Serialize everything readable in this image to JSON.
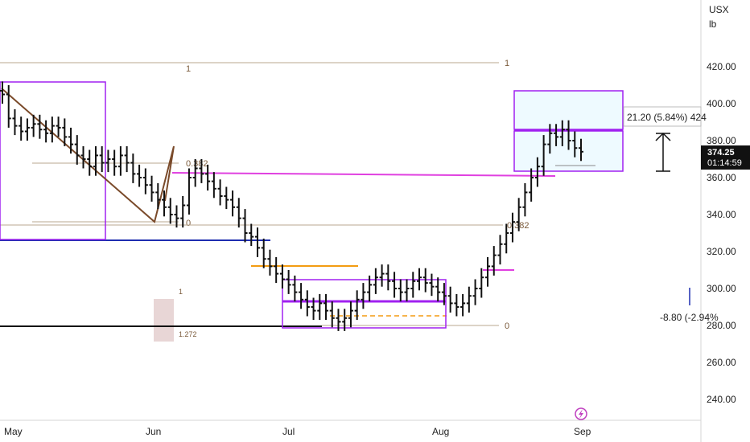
{
  "symbol": "USX",
  "unit": "lb",
  "price_tag": {
    "price": "374.25",
    "countdown": "01:14:59"
  },
  "measure_label": "21.20 (5.84%) 424",
  "measure_label2": "-8.80 (-2.94%",
  "colors": {
    "bars": "#111111",
    "box": "#a020f0",
    "magenta": "#e040e0",
    "fib": "#a08a70",
    "trend": "#7a4a2a",
    "blue": "#1e2db0",
    "orange": "#f39c12"
  },
  "chart_data": {
    "type": "bar",
    "x_labels": [
      "May",
      "Jun",
      "Jul",
      "Aug",
      "Sep"
    ],
    "y_ticks": [
      "420.00",
      "400.00",
      "380.00",
      "360.00",
      "340.00",
      "320.00",
      "300.00",
      "280.00",
      "260.00",
      "240.00"
    ],
    "ylim": [
      230,
      440
    ],
    "fib_labels": {
      "upper_1": "1",
      "upper_0382": "0.382",
      "upper_0": "0",
      "right_1": "1",
      "right_0382": "0.382",
      "right_0": "0",
      "small_1": "1",
      "small_1272": "1.272"
    },
    "ohlc_closes": [
      405,
      392,
      388,
      385,
      387,
      389,
      386,
      384,
      388,
      387,
      382,
      378,
      372,
      370,
      366,
      372,
      368,
      370,
      366,
      372,
      368,
      362,
      360,
      356,
      352,
      348,
      344,
      340,
      338,
      345,
      360,
      365,
      362,
      358,
      354,
      350,
      348,
      344,
      338,
      330,
      328,
      322,
      316,
      312,
      308,
      305,
      302,
      298,
      294,
      290,
      288,
      292,
      288,
      284,
      282,
      284,
      288,
      294,
      298,
      302,
      306,
      308,
      304,
      300,
      298,
      300,
      304,
      306,
      303,
      301,
      298,
      296,
      292,
      290,
      292,
      296,
      300,
      306,
      312,
      318,
      324,
      330,
      336,
      344,
      352,
      360,
      366,
      378,
      384,
      382,
      386,
      380,
      376,
      374
    ]
  }
}
